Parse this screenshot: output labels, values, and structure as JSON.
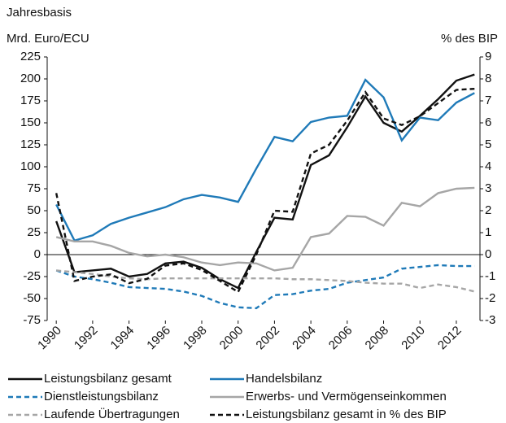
{
  "chart_data": {
    "type": "line",
    "subtitle": "Jahresbasis",
    "y_label": "Mrd. Euro/ECU",
    "y2_label": "% des BIP",
    "x": [
      1990,
      1991,
      1992,
      1993,
      1994,
      1995,
      1996,
      1997,
      1998,
      1999,
      2000,
      2001,
      2002,
      2003,
      2004,
      2005,
      2006,
      2007,
      2008,
      2009,
      2010,
      2011,
      2012,
      2013
    ],
    "xlim": [
      1989.5,
      2013.3
    ],
    "xticks": [
      1990,
      1992,
      1994,
      1996,
      1998,
      2000,
      2002,
      2004,
      2006,
      2008,
      2010,
      2012
    ],
    "ylim": [
      -75,
      225
    ],
    "yticks": [
      -75,
      -50,
      -25,
      0,
      25,
      50,
      75,
      100,
      125,
      150,
      175,
      200,
      225
    ],
    "y2lim": [
      -3,
      9
    ],
    "y2ticks": [
      -3,
      -2,
      -1,
      0,
      1,
      2,
      3,
      4,
      5,
      6,
      7,
      8,
      9
    ],
    "series": [
      {
        "name": "Leistungsbilanz gesamt",
        "color": "#111111",
        "dash": "solid",
        "values": [
          38,
          -20,
          -18,
          -16,
          -25,
          -22,
          -10,
          -8,
          -15,
          -28,
          -38,
          3,
          42,
          40,
          102,
          113,
          145,
          180,
          150,
          140,
          158,
          177,
          198,
          205
        ]
      },
      {
        "name": "Handelsbilanz",
        "color": "#1f7ab8",
        "dash": "solid",
        "values": [
          57,
          16,
          22,
          35,
          42,
          48,
          54,
          63,
          68,
          65,
          60,
          98,
          134,
          129,
          151,
          156,
          158,
          199,
          179,
          130,
          156,
          153,
          173,
          184
        ]
      },
      {
        "name": "Dienstleistungsbilanz",
        "color": "#1f7ab8",
        "dash": "dashed",
        "values": [
          -18,
          -25,
          -28,
          -32,
          -37,
          -38,
          -39,
          -42,
          -47,
          -55,
          -60,
          -61,
          -46,
          -45,
          -41,
          -39,
          -32,
          -29,
          -26,
          -16,
          -14,
          -12,
          -13,
          -13
        ]
      },
      {
        "name": "Erwerbs- und Vermögenseinkommen",
        "color": "#a6a6a6",
        "dash": "solid",
        "values": [
          20,
          15,
          15,
          10,
          2,
          -2,
          0,
          -3,
          -9,
          -12,
          -9,
          -10,
          -18,
          -15,
          20,
          24,
          44,
          43,
          33,
          59,
          55,
          70,
          75,
          76
        ]
      },
      {
        "name": "Laufende Übertragungen",
        "color": "#a6a6a6",
        "dash": "dashed",
        "values": [
          -18,
          -20,
          -22,
          -25,
          -27,
          -28,
          -27,
          -27,
          -27,
          -27,
          -27,
          -27,
          -27,
          -28,
          -28,
          -29,
          -30,
          -32,
          -33,
          -33,
          -38,
          -34,
          -37,
          -42
        ]
      },
      {
        "name": "Leistungsbilanz gesamt in % des BIP",
        "color": "#111111",
        "dash": "dashed",
        "axis": "y2",
        "values": [
          2.8,
          -1.2,
          -1.0,
          -0.9,
          -1.3,
          -1.1,
          -0.5,
          -0.4,
          -0.7,
          -1.2,
          -1.7,
          0.0,
          2.0,
          1.95,
          4.6,
          5.0,
          6.1,
          7.4,
          6.2,
          5.9,
          6.3,
          6.9,
          7.5,
          7.55
        ]
      }
    ]
  }
}
